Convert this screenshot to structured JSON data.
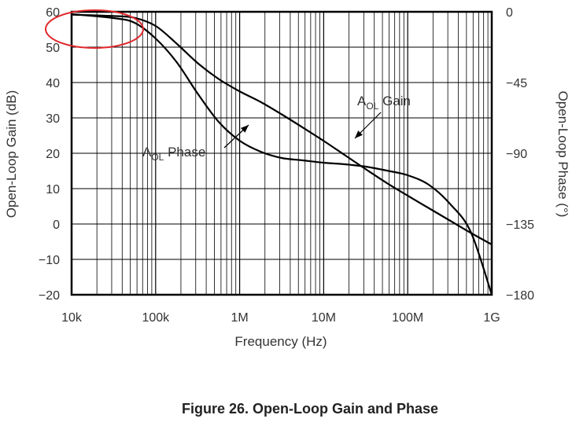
{
  "caption": "Figure 26. Open-Loop Gain and Phase",
  "chart_data": {
    "type": "line",
    "xlabel": "Frequency (Hz)",
    "ylabel": "Open-Loop Gain (dB)",
    "y2label": "Open-Loop Phase (°)",
    "x_scale": "log",
    "xlim": [
      10000,
      1000000000
    ],
    "ylim": [
      -20,
      60
    ],
    "y2lim": [
      -180,
      0
    ],
    "x_ticks": [
      10000,
      100000,
      1000000,
      10000000,
      100000000,
      1000000000
    ],
    "x_tick_labels": [
      "10k",
      "100k",
      "1M",
      "10M",
      "100M",
      "1G"
    ],
    "y_ticks": [
      -20,
      -10,
      0,
      10,
      20,
      30,
      40,
      50,
      60
    ],
    "y_tick_labels": [
      "−20",
      "−10",
      "0",
      "10",
      "20",
      "30",
      "40",
      "50",
      "60"
    ],
    "y2_ticks": [
      0,
      -45,
      -90,
      -135,
      -180
    ],
    "y2_tick_labels": [
      "0",
      "−45",
      "−90",
      "−135",
      "−180"
    ],
    "grid": true,
    "series": [
      {
        "name": "AOL Gain",
        "label_main": "A",
        "label_sub": "OL",
        "label_rest": " Gain",
        "axis": "left",
        "color": "#000000",
        "x": [
          10000,
          31623,
          56234,
          100000,
          177828,
          316228,
          562341,
          1000000,
          1778279,
          3162278,
          5623413,
          10000000,
          17782794,
          31622777,
          56234133,
          100000000,
          177827941,
          316227766,
          562341325,
          1000000000
        ],
        "y": [
          59.2,
          58.8,
          58.3,
          56.0,
          51.0,
          45.5,
          41.0,
          37.5,
          34.5,
          31.0,
          27.3,
          23.5,
          19.5,
          15.5,
          11.6,
          8.0,
          4.5,
          1.0,
          -2.5,
          -5.8
        ]
      },
      {
        "name": "AOL Phase",
        "label_main": "A",
        "label_sub": "OL",
        "label_rest": " Phase",
        "axis": "right",
        "color": "#000000",
        "x": [
          10000,
          31623,
          56234,
          100000,
          177828,
          316228,
          562341,
          1000000,
          1778279,
          3162278,
          5623413,
          10000000,
          17782794,
          31622777,
          56234133,
          100000000,
          177827941,
          316227766,
          562341325,
          1000000000
        ],
        "y": [
          -1.5,
          -4,
          -7,
          -17,
          -32,
          -52,
          -70,
          -82,
          -89,
          -93,
          -94.5,
          -96,
          -97,
          -98.5,
          -101,
          -104,
          -110,
          -122,
          -140,
          -180
        ]
      }
    ],
    "annotations": [
      {
        "circle": "red",
        "highlight": "low-frequency gain near 60 dB"
      }
    ],
    "highlight_color": "#e0262b"
  }
}
